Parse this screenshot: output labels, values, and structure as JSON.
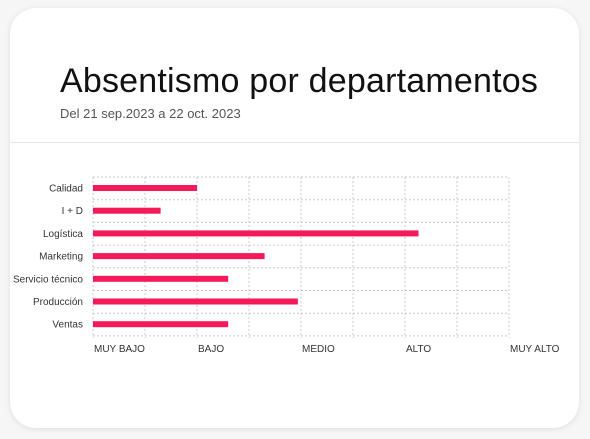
{
  "header": {
    "title": "Absentismo por departamentos",
    "subtitle": "Del 21 sep.2023 a 22 oct. 2023"
  },
  "chart_data": {
    "type": "bar",
    "orientation": "horizontal",
    "title": "Absentismo por departamentos",
    "subtitle": "Del 21 sep.2023 a 22 oct. 2023",
    "categories": [
      "Calidad",
      "I + D",
      "Logística",
      "Marketing",
      "Servicio técnico",
      "Producción",
      "Ventas"
    ],
    "values": [
      1.0,
      0.65,
      3.13,
      1.65,
      1.3,
      1.97,
      1.3
    ],
    "xlim": [
      0,
      4
    ],
    "x_ticks": [
      0,
      1,
      2,
      3,
      4
    ],
    "x_tick_labels": [
      "MUY BAJO",
      "BAJO",
      "MEDIO",
      "ALTO",
      "MUY ALTO"
    ],
    "grid": true,
    "bar_color": "#f5195a",
    "grid_color": "#c9c9c9"
  }
}
